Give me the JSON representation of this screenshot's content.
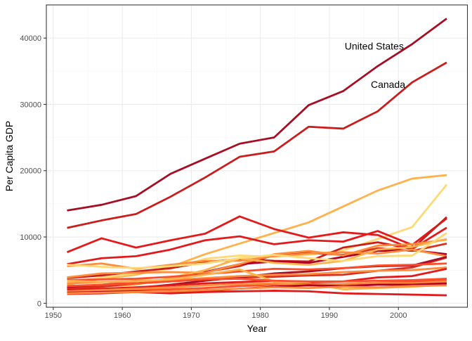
{
  "chart_data": {
    "type": "line",
    "title": "",
    "xlabel": "Year",
    "ylabel": "Per Capita GDP",
    "xlim": [
      1949,
      2010
    ],
    "ylim": [
      -600,
      45000
    ],
    "x_ticks": [
      1950,
      1960,
      1970,
      1980,
      1990,
      2000
    ],
    "x_tick_labels": [
      "1950",
      "1960",
      "1970",
      "1980",
      "1990",
      "2000"
    ],
    "y_ticks": [
      0,
      10000,
      20000,
      30000,
      40000
    ],
    "y_tick_labels": [
      "0",
      "10000",
      "20000",
      "30000",
      "40000"
    ],
    "grid": true,
    "legend": "none",
    "x": [
      1952,
      1957,
      1962,
      1967,
      1972,
      1977,
      1982,
      1987,
      1992,
      1997,
      2002,
      2007
    ],
    "series": [
      {
        "name": "United States",
        "color": "#a50f26",
        "values": [
          13990,
          14850,
          16170,
          19530,
          21810,
          24070,
          25010,
          29880,
          32000,
          35770,
          39100,
          42950
        ]
      },
      {
        "name": "Canada",
        "color": "#c81e1e",
        "values": [
          11370,
          12490,
          13460,
          16080,
          18970,
          22090,
          22900,
          26630,
          26340,
          28950,
          33330,
          36320
        ]
      },
      {
        "color": "#feb24c",
        "values": [
          2800,
          3700,
          4300,
          5500,
          7400,
          9000,
          10600,
          12200,
          14600,
          17000,
          18800,
          19330
        ]
      },
      {
        "color": "#fed976",
        "values": [
          3100,
          3900,
          4500,
          5200,
          6700,
          7200,
          7000,
          7300,
          8000,
          9700,
          11500,
          17900
        ]
      },
      {
        "color": "#e31a1c",
        "values": [
          5900,
          6800,
          7100,
          8100,
          9500,
          10100,
          8900,
          9500,
          9300,
          10900,
          8800,
          12800
        ]
      },
      {
        "color": "#c81e1e",
        "values": [
          3800,
          4200,
          4800,
          5300,
          6200,
          6700,
          6400,
          6300,
          8400,
          9200,
          8200,
          13000
        ]
      },
      {
        "color": "#e31a1c",
        "values": [
          7700,
          9800,
          8400,
          9500,
          10500,
          13100,
          11200,
          9900,
          10700,
          10300,
          8200,
          11400
        ]
      },
      {
        "color": "#d7301f",
        "values": [
          2300,
          2800,
          3200,
          3600,
          4700,
          5600,
          7300,
          7600,
          7300,
          8300,
          7900,
          9000
        ]
      },
      {
        "color": "#b10026",
        "values": [
          2400,
          2600,
          3000,
          3500,
          4700,
          5900,
          6300,
          6100,
          7000,
          7900,
          8000,
          7400
        ]
      },
      {
        "color": "#fd8d3c",
        "values": [
          5600,
          6000,
          5200,
          5800,
          6400,
          6400,
          7100,
          7500,
          7700,
          7500,
          8100,
          7100
        ]
      },
      {
        "color": "#fd8d3c",
        "values": [
          3900,
          4500,
          4600,
          4700,
          4600,
          5900,
          7400,
          7900,
          7200,
          8700,
          8900,
          9600
        ]
      },
      {
        "color": "#feb24c",
        "values": [
          2100,
          2500,
          2800,
          3800,
          5000,
          6800,
          6100,
          5800,
          6400,
          8100,
          8500,
          9700
        ]
      },
      {
        "color": "#fed976",
        "values": [
          5800,
          5500,
          5300,
          5600,
          6000,
          6800,
          7300,
          6800,
          6400,
          7100,
          7200,
          10600
        ]
      },
      {
        "color": "#d7301f",
        "values": [
          2200,
          2500,
          3000,
          3300,
          3600,
          3900,
          4000,
          4200,
          4300,
          4900,
          5400,
          6900
        ]
      },
      {
        "color": "#a50f26",
        "values": [
          1900,
          2100,
          2300,
          2800,
          3400,
          3900,
          4500,
          4800,
          5300,
          5600,
          5700,
          7000
        ]
      },
      {
        "color": "#fc4e2a",
        "values": [
          3500,
          3600,
          3700,
          4000,
          4400,
          4800,
          5200,
          5100,
          5300,
          5700,
          5800,
          6000
        ]
      },
      {
        "color": "#fd8d3c",
        "values": [
          3000,
          3200,
          3400,
          3500,
          3800,
          4100,
          4300,
          4400,
          4700,
          4900,
          5000,
          5400
        ]
      },
      {
        "color": "#e31a1c",
        "values": [
          2000,
          2200,
          2400,
          2700,
          3000,
          3200,
          3400,
          3200,
          3300,
          3900,
          4100,
          5200
        ]
      },
      {
        "color": "#feb24c",
        "values": [
          3400,
          3200,
          3300,
          3600,
          4300,
          5100,
          3300,
          3000,
          2100,
          2300,
          2500,
          2800
        ]
      },
      {
        "color": "#fc4e2a",
        "values": [
          2600,
          2800,
          3000,
          3300,
          3600,
          3700,
          3400,
          3300,
          3300,
          3400,
          3500,
          3700
        ]
      },
      {
        "color": "#fc4e2a",
        "values": [
          1700,
          1800,
          2000,
          2100,
          2300,
          2600,
          2800,
          2900,
          2900,
          3100,
          3300,
          3500
        ]
      },
      {
        "color": "#fd8d3c",
        "values": [
          1800,
          2000,
          2200,
          2400,
          2700,
          2900,
          3000,
          2700,
          2900,
          3100,
          3000,
          3300
        ]
      },
      {
        "color": "#b10026",
        "values": [
          1600,
          1700,
          1800,
          1700,
          1900,
          2200,
          2500,
          2700,
          2600,
          2800,
          2800,
          3000
        ]
      },
      {
        "color": "#e31a1c",
        "values": [
          1400,
          1500,
          1700,
          1500,
          1700,
          1800,
          1900,
          1800,
          1500,
          1400,
          1300,
          1200
        ]
      },
      {
        "color": "#fd8d3c",
        "values": [
          1500,
          1600,
          1700,
          1800,
          2000,
          2200,
          2400,
          2300,
          2500,
          2400,
          2600,
          2700
        ]
      }
    ],
    "annotations": [
      {
        "text": "United States",
        "x": 1996.5,
        "y": 38800
      },
      {
        "text": "Canada",
        "x": 1998.5,
        "y": 33000
      }
    ]
  }
}
